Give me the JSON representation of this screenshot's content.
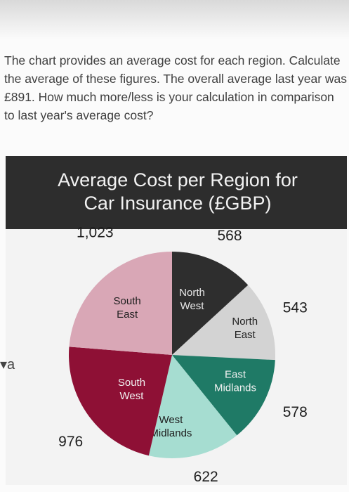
{
  "question": {
    "text": "The chart provides an average cost for each region. Calculate the average of these figures. The overall average last year was £891.  How much more/less is your calculation in comparison to last year's average cost?"
  },
  "side_glyph": "▾a",
  "colors": {
    "card": "#f3f3f3",
    "title_band": "#2d2d2d",
    "title_text": "#f2f2f2"
  },
  "chart_data": {
    "type": "pie",
    "title": "Average Cost per Region for Car Insurance (£GBP)",
    "slices": [
      {
        "label": "North West",
        "value": 568,
        "value_label": "568",
        "color": "#2e2e2e",
        "text_color": "#e8e8e8"
      },
      {
        "label": "North East",
        "value": 543,
        "value_label": "543",
        "color": "#d3d3d3",
        "text_color": "#222222"
      },
      {
        "label": "East Midlands",
        "value": 578,
        "value_label": "578",
        "color": "#1f7a66",
        "text_color": "#f2f2f2"
      },
      {
        "label": "West Midlands",
        "value": 622,
        "value_label": "622",
        "color": "#a6ddd1",
        "text_color": "#1e1e1e"
      },
      {
        "label": "South West",
        "value": 976,
        "value_label": "976",
        "color": "#8e1035",
        "text_color": "#f2f2f2"
      },
      {
        "label": "South East",
        "value": 1023,
        "value_label": "1,023",
        "color": "#d9a7b6",
        "text_color": "#1e1e1e"
      }
    ]
  }
}
